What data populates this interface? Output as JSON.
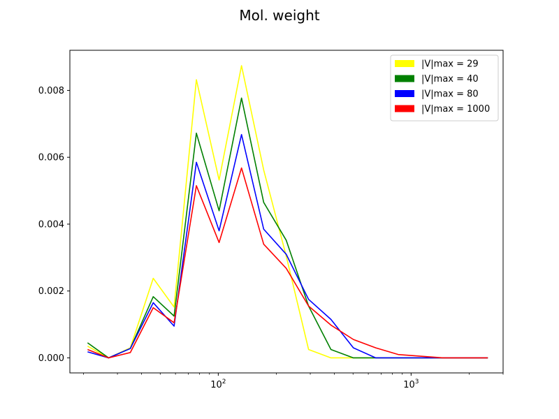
{
  "chart_data": {
    "type": "line",
    "title": "Mol. weight",
    "xlabel": "",
    "ylabel": "",
    "xscale": "log",
    "xlim": [
      17,
      3000
    ],
    "ylim": [
      -0.00045,
      0.0092
    ],
    "x": [
      21,
      27,
      35,
      46,
      59,
      77,
      101,
      132,
      172,
      225,
      294,
      384,
      502,
      656,
      857,
      1120,
      1464,
      1913,
      2500
    ],
    "yticks": [
      0.0,
      0.002,
      0.004,
      0.006,
      0.008
    ],
    "ytick_labels": [
      "0.000",
      "0.002",
      "0.004",
      "0.006",
      "0.008"
    ],
    "xticks_major": [
      100,
      1000
    ],
    "xtick_labels": [
      {
        "base": "10",
        "exp": "2"
      },
      {
        "base": "10",
        "exp": "3"
      }
    ],
    "xticks_minor": [
      20,
      30,
      40,
      50,
      60,
      70,
      80,
      90,
      200,
      300,
      400,
      500,
      600,
      700,
      800,
      900,
      2000,
      3000
    ],
    "grid": false,
    "legend_position": "top-right",
    "series": [
      {
        "name": "|V|max = 29",
        "color": "#ffff00",
        "values": [
          0.00035,
          0.0,
          0.0003,
          0.00238,
          0.00152,
          0.00832,
          0.00532,
          0.00874,
          0.00562,
          0.00305,
          0.00025,
          0.0,
          0.0,
          0.0,
          0.0,
          0.0,
          0.0,
          0.0,
          0.0
        ]
      },
      {
        "name": "|V|max = 40",
        "color": "#008000",
        "values": [
          0.00045,
          0.0,
          0.00028,
          0.00183,
          0.00125,
          0.00672,
          0.0044,
          0.00777,
          0.00465,
          0.00352,
          0.00155,
          0.00025,
          0.0,
          0.0,
          0.0,
          0.0,
          0.0,
          0.0,
          0.0
        ]
      },
      {
        "name": "|V|max = 80",
        "color": "#0000ff",
        "values": [
          0.00018,
          0.0,
          0.00028,
          0.00165,
          0.00095,
          0.00585,
          0.0038,
          0.00668,
          0.00385,
          0.0031,
          0.00175,
          0.00115,
          0.0003,
          0.0,
          0.0,
          0.0,
          0.0,
          0.0,
          0.0
        ]
      },
      {
        "name": "|V|max = 1000",
        "color": "#ff0000",
        "values": [
          0.00025,
          0.0,
          0.00016,
          0.0015,
          0.00105,
          0.00515,
          0.00345,
          0.00568,
          0.0034,
          0.00268,
          0.00155,
          0.00098,
          0.00055,
          0.0003,
          0.0001,
          5e-05,
          0.0,
          0.0,
          0.0
        ]
      }
    ]
  }
}
